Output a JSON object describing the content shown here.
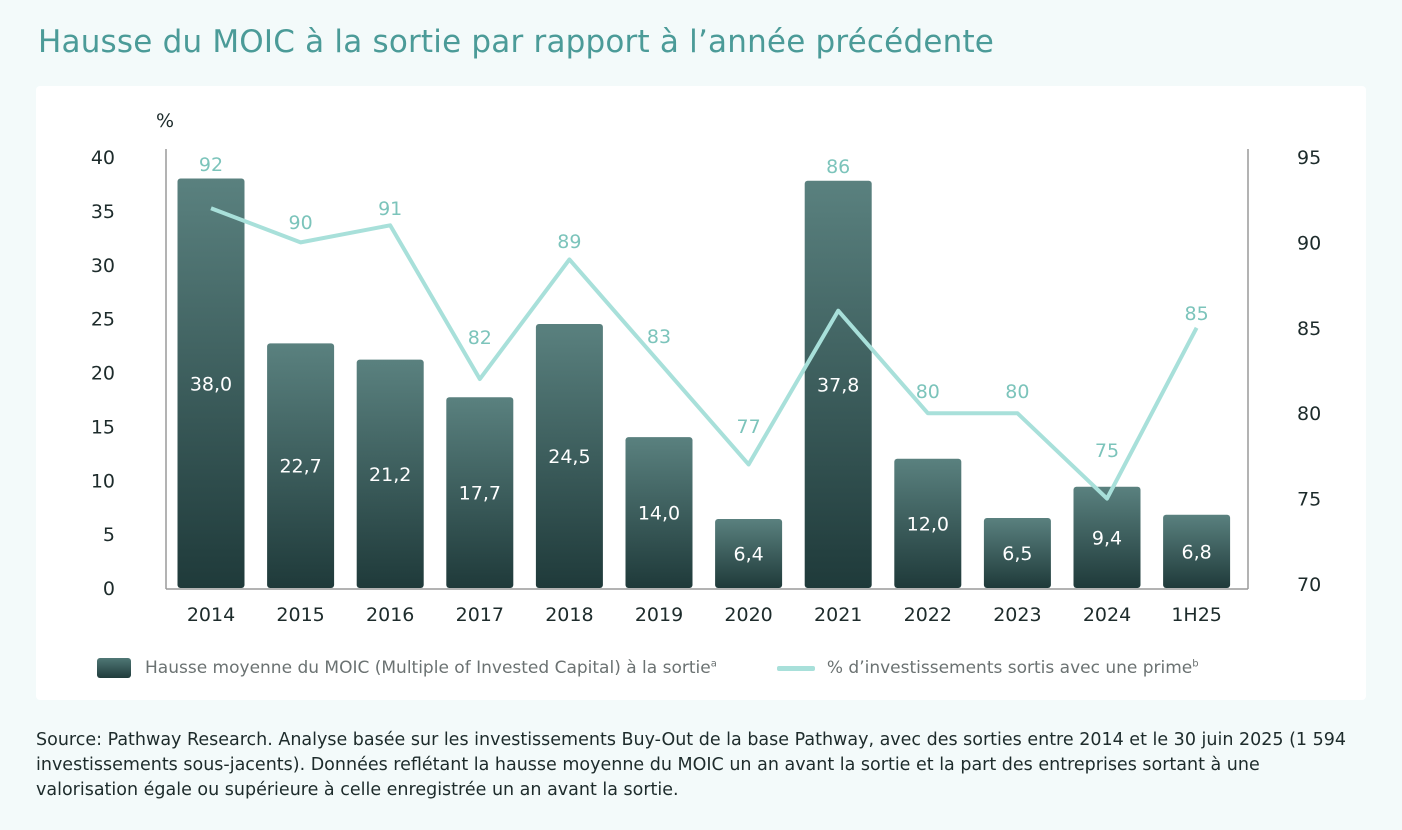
{
  "title": "Hausse du MOIC à la sortie par rapport à l’année précédente",
  "chart_data": {
    "type": "bar+line",
    "categories": [
      "2014",
      "2015",
      "2016",
      "2017",
      "2018",
      "2019",
      "2020",
      "2021",
      "2022",
      "2023",
      "2024",
      "1H25"
    ],
    "series": [
      {
        "name": "Hausse moyenne du MOIC (Multiple of Invested Capital) à la sortie",
        "superscript": "a",
        "type": "bar",
        "axis": "left",
        "values": [
          38.0,
          22.7,
          21.2,
          17.7,
          24.5,
          14.0,
          6.4,
          37.8,
          12.0,
          6.5,
          9.4,
          6.8
        ],
        "labels": [
          "38,0",
          "22,7",
          "21,2",
          "17,7",
          "24,5",
          "14,0",
          "6,4",
          "37,8",
          "12,0",
          "6,5",
          "9,4",
          "6,8"
        ]
      },
      {
        "name": "% d’investissements sortis avec une prime",
        "superscript": "b",
        "type": "line",
        "axis": "right",
        "values": [
          92,
          90,
          91,
          82,
          89,
          83,
          77,
          86,
          80,
          80,
          75,
          85
        ]
      }
    ],
    "left_axis": {
      "label": "%",
      "range": [
        0,
        40
      ],
      "ticks": [
        "0",
        "5",
        "10",
        "15",
        "20",
        "25",
        "30",
        "35",
        "40"
      ]
    },
    "right_axis": {
      "range": [
        70,
        95
      ],
      "ticks": [
        "70",
        "75",
        "80",
        "85",
        "90",
        "95"
      ]
    },
    "grid": false,
    "legend": "bottom",
    "colors": {
      "bar_top": "#5a817f",
      "bar_bottom": "#1f3a3a",
      "line": "#a8e0da",
      "line_label": "#7cc4bb",
      "title": "#4b9b98"
    }
  },
  "source": "Source: Pathway Research. Analyse basée sur les investissements Buy-Out de la base Pathway, avec des sorties entre 2014 et le 30 juin 2025 (1 594 investissements sous-jacents). Données reflétant la hausse moyenne du MOIC un an avant la sortie et la part des entreprises sortant à une valorisation égale ou supérieure à celle enregistrée un an avant la sortie."
}
